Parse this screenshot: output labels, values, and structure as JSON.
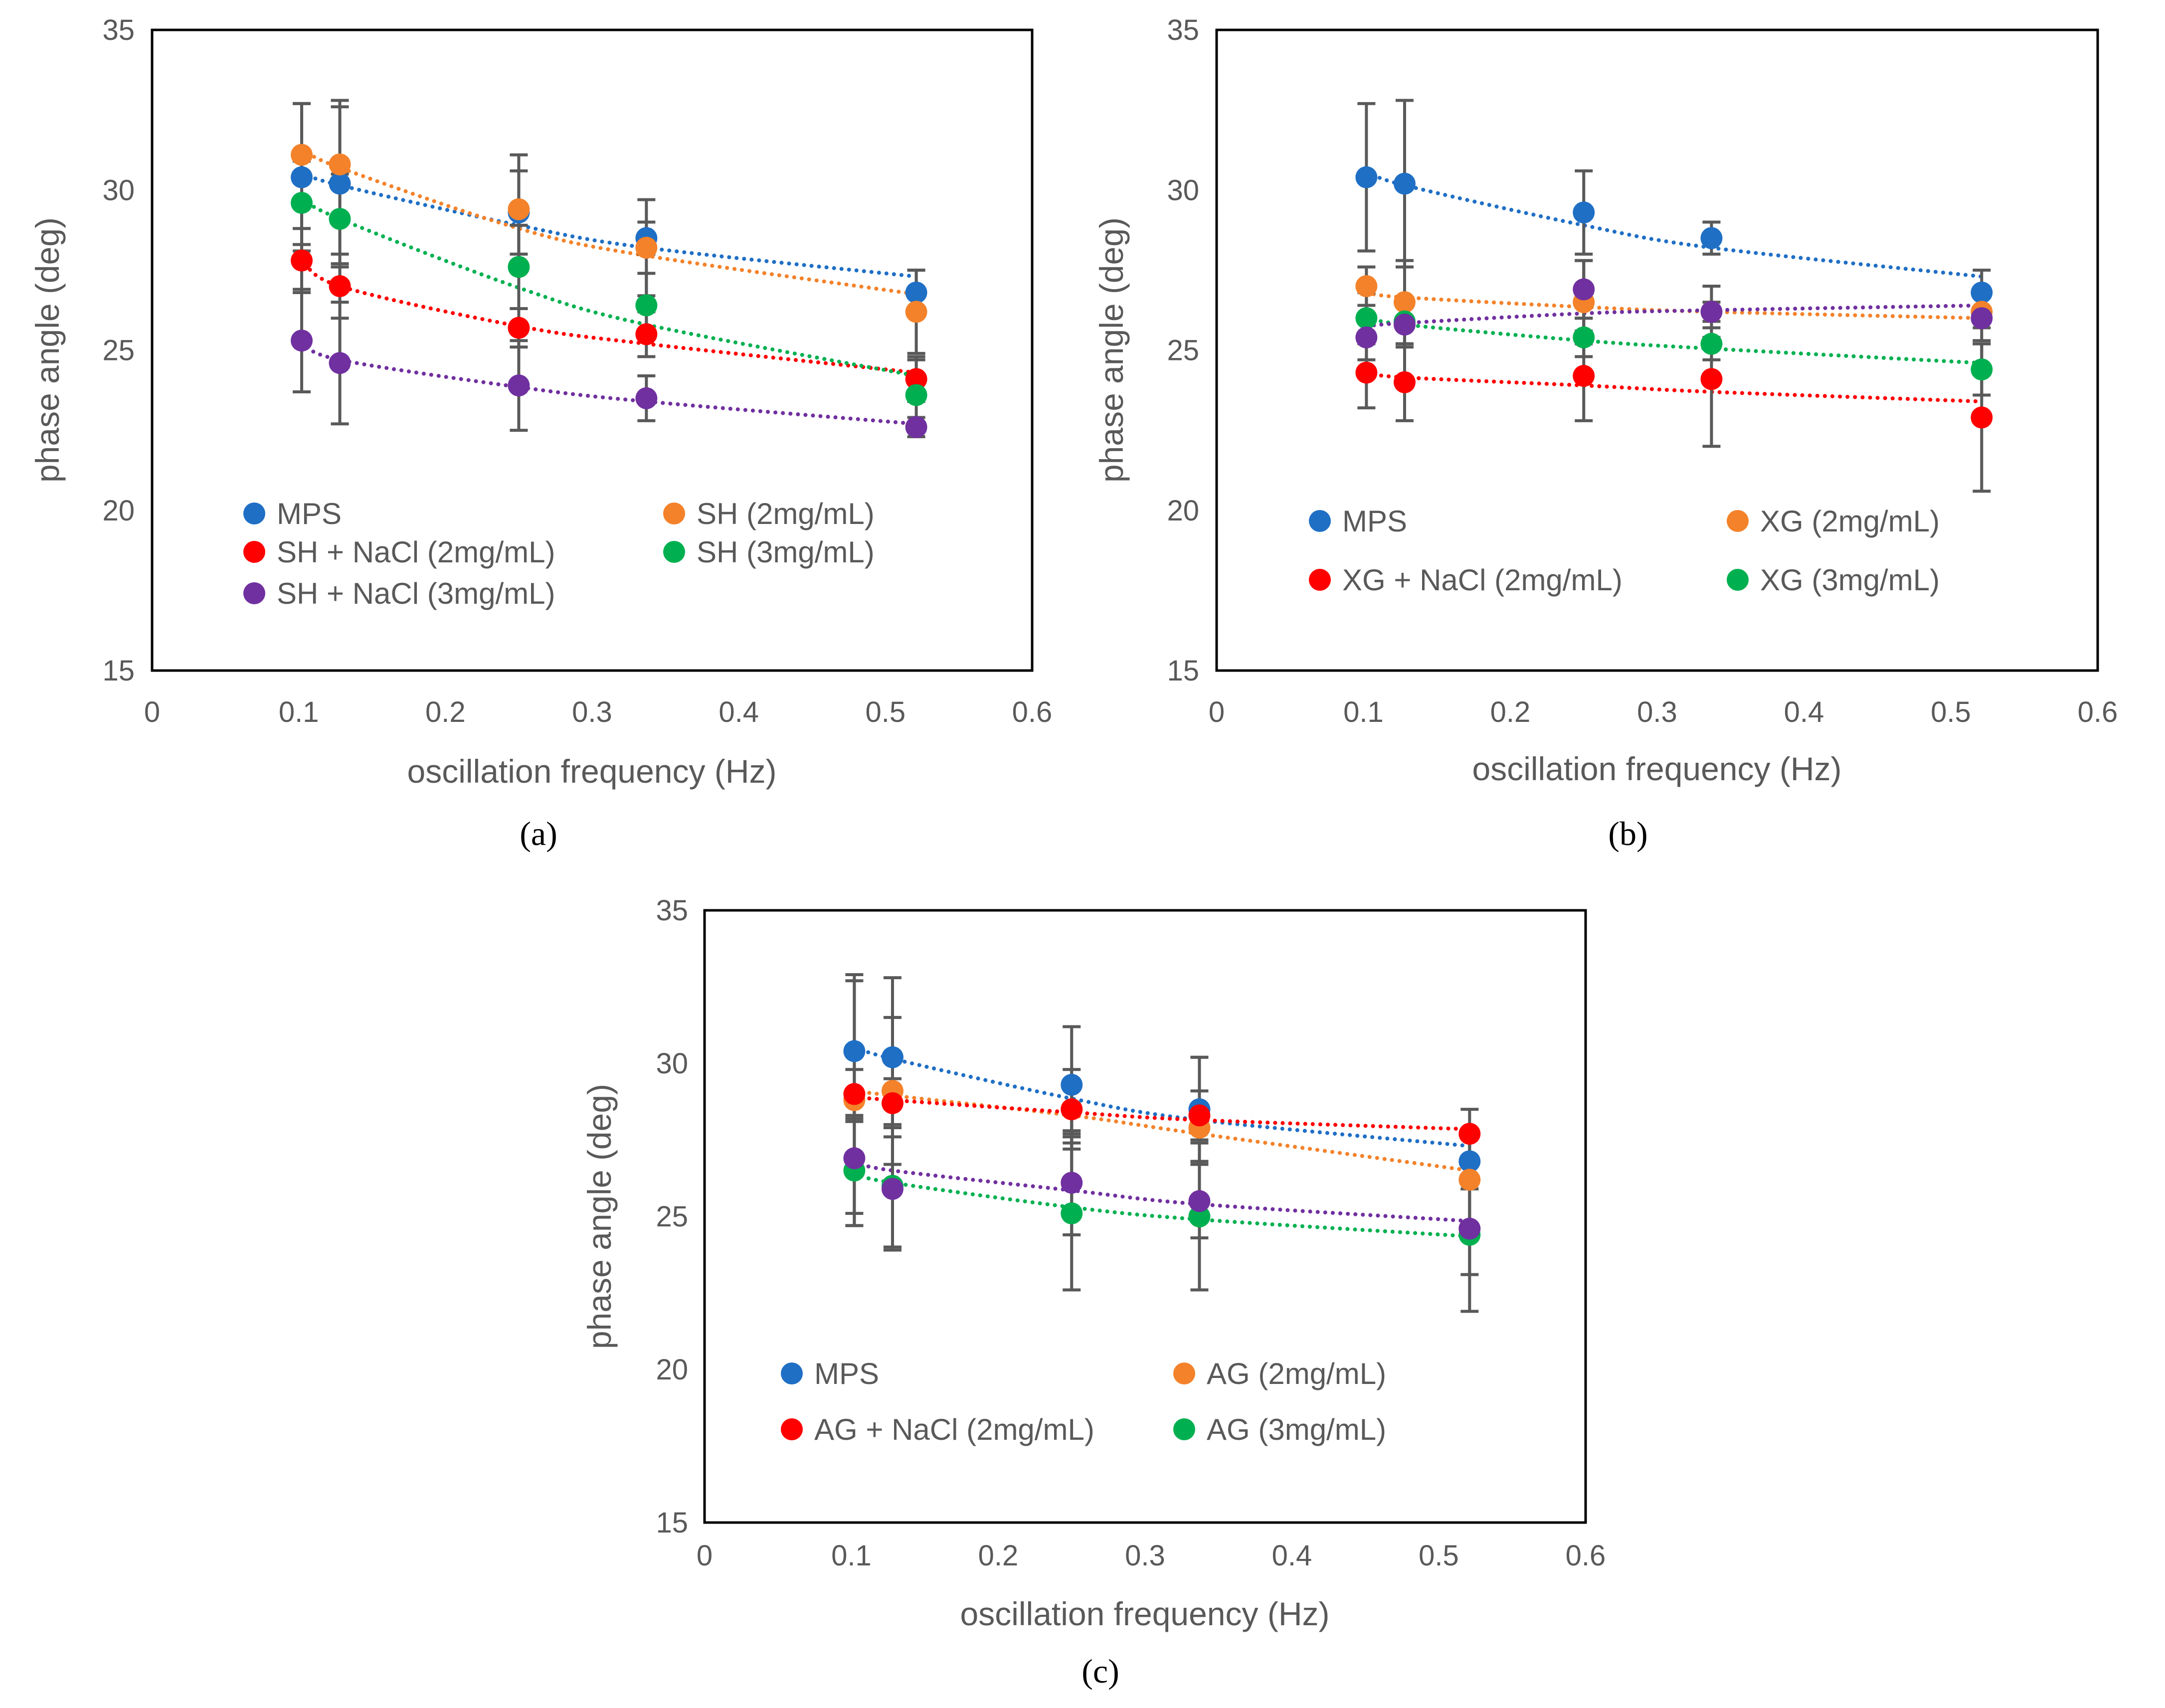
{
  "panel_captions": [
    "(a)",
    "(b)",
    "(c)"
  ],
  "chart_data": [
    {
      "type": "scatter",
      "panel": "(a)",
      "xlabel": "oscillation frequency (Hz)",
      "ylabel": "phase angle (deg)",
      "xlim": [
        0,
        0.6
      ],
      "ylim": [
        15,
        35
      ],
      "xticks": [
        "0",
        "0.1",
        "0.2",
        "0.3",
        "0.4",
        "0.5",
        "0.6"
      ],
      "yticks": [
        "15",
        "20",
        "25",
        "30",
        "35"
      ],
      "grid": false,
      "trendline": "dotted",
      "x": [
        0.102,
        0.128,
        0.25,
        0.337,
        0.521
      ],
      "series": [
        {
          "name": "MPS",
          "color": "#1f6fc5",
          "values": [
            30.4,
            30.2,
            29.3,
            28.5,
            26.8
          ],
          "errors": [
            2.3,
            2.6,
            1.3,
            0.5,
            0.7
          ],
          "trend": [
            30.55,
            30.15,
            28.9,
            28.2,
            27.3
          ]
        },
        {
          "name": "SH (2mg/mL)",
          "color": "#f4822a",
          "values": [
            31.1,
            30.8,
            29.4,
            28.2,
            26.2
          ],
          "errors": [
            1.6,
            1.8,
            1.7,
            1.5,
            1.3
          ],
          "trend": [
            31.3,
            30.7,
            28.8,
            27.95,
            26.75
          ]
        },
        {
          "name": "SH + NaCl (2mg/mL)",
          "color": "#ff0000",
          "values": [
            27.8,
            27.0,
            25.7,
            25.5,
            24.1
          ],
          "errors": [
            1.0,
            1.0,
            0.6,
            0.7,
            0.7
          ],
          "trend": [
            27.9,
            27.0,
            25.75,
            25.2,
            24.3
          ]
        },
        {
          "name": "SH (3mg/mL)",
          "color": "#00b050",
          "values": [
            29.6,
            29.1,
            27.6,
            26.4,
            23.6
          ],
          "errors": [
            1.3,
            1.4,
            1.3,
            1.0,
            1.1
          ],
          "trend": [
            29.75,
            29.1,
            26.95,
            25.8,
            24.2
          ]
        },
        {
          "name": "SH + NaCl (3mg/mL)",
          "color": "#7030a0",
          "values": [
            25.3,
            24.6,
            23.9,
            23.5,
            22.6
          ],
          "errors": [
            1.6,
            1.9,
            1.4,
            0.7,
            0.3
          ],
          "trend": [
            25.25,
            24.7,
            23.85,
            23.4,
            22.7
          ]
        }
      ]
    },
    {
      "type": "scatter",
      "panel": "(b)",
      "xlabel": "oscillation frequency (Hz)",
      "ylabel": "phase angle (deg)",
      "xlim": [
        0,
        0.6
      ],
      "ylim": [
        15,
        35
      ],
      "xticks": [
        "0",
        "0.1",
        "0.2",
        "0.3",
        "0.4",
        "0.5",
        "0.6"
      ],
      "yticks": [
        "15",
        "20",
        "25",
        "30",
        "35"
      ],
      "grid": false,
      "trendline": "dotted",
      "x": [
        0.102,
        0.128,
        0.25,
        0.337,
        0.521
      ],
      "series": [
        {
          "name": "MPS",
          "color": "#1f6fc5",
          "values": [
            30.4,
            30.2,
            29.3,
            28.5,
            26.8
          ],
          "errors": [
            2.3,
            2.6,
            1.3,
            0.5,
            0.7
          ],
          "trend": [
            30.6,
            30.15,
            28.9,
            28.2,
            27.3
          ]
        },
        {
          "name": "XG (2mg/mL)",
          "color": "#f4822a",
          "values": [
            27.0,
            26.5,
            26.5,
            26.2,
            26.2
          ],
          "errors": [
            0.6,
            1.3,
            1.3,
            0.3,
            0.5
          ],
          "trend": [
            26.8,
            26.65,
            26.35,
            26.2,
            26.0
          ]
        },
        {
          "name": "XG + NaCl (2mg/mL)",
          "color": "#ff0000",
          "values": [
            24.3,
            24.0,
            24.2,
            24.1,
            22.9
          ],
          "errors": [
            1.1,
            1.2,
            1.4,
            2.1,
            2.3
          ],
          "trend": [
            24.3,
            24.15,
            23.9,
            23.7,
            23.4
          ]
        },
        {
          "name": "XG (3mg/mL)",
          "color": "#00b050",
          "values": [
            26.0,
            25.9,
            25.4,
            25.2,
            24.4
          ],
          "errors": [
            0.8,
            0.7,
            0.6,
            0.5,
            0.8
          ],
          "trend": [
            26.05,
            25.8,
            25.3,
            25.05,
            24.6
          ]
        },
        {
          "name": "SH + NaCl (3mg/mL)",
          "color": "#7030a0",
          "values": [
            25.4,
            25.8,
            26.9,
            26.2,
            26.0
          ],
          "errors": [
            0.7,
            0.7,
            0.9,
            0.8,
            0.7
          ],
          "trend": [
            25.75,
            25.85,
            26.15,
            26.25,
            26.4
          ]
        }
      ]
    },
    {
      "type": "scatter",
      "panel": "(c)",
      "xlabel": "oscillation frequency (Hz)",
      "ylabel": "phase angle (deg)",
      "xlim": [
        0,
        0.6
      ],
      "ylim": [
        15,
        35
      ],
      "xticks": [
        "0",
        "0.1",
        "0.2",
        "0.3",
        "0.4",
        "0.5",
        "0.6"
      ],
      "yticks": [
        "15",
        "20",
        "25",
        "30",
        "35"
      ],
      "grid": false,
      "trendline": "dotted",
      "x": [
        0.102,
        0.128,
        0.25,
        0.337,
        0.521
      ],
      "series": [
        {
          "name": "MPS",
          "color": "#1f6fc5",
          "values": [
            30.4,
            30.2,
            29.3,
            28.5,
            26.8
          ],
          "errors": [
            2.3,
            2.6,
            1.9,
            1.7,
            0.9
          ],
          "trend": [
            30.55,
            30.15,
            28.85,
            28.15,
            27.3
          ]
        },
        {
          "name": "AG (2mg/mL)",
          "color": "#f4822a",
          "values": [
            28.8,
            29.1,
            28.5,
            27.9,
            26.2
          ],
          "errors": [
            4.1,
            2.4,
            1.3,
            2.3,
            1.5
          ],
          "trend": [
            29.1,
            28.95,
            28.3,
            27.7,
            26.5
          ]
        },
        {
          "name": "AG + NaCl (2mg/mL)",
          "color": "#ff0000",
          "values": [
            29.0,
            28.7,
            28.5,
            28.3,
            27.7
          ],
          "errors": [
            0.8,
            0.8,
            0.8,
            0.8,
            0.8
          ],
          "trend": [
            28.9,
            28.8,
            28.4,
            28.15,
            27.85
          ]
        },
        {
          "name": "AG (3mg/mL)",
          "color": "#00b050",
          "values": [
            26.5,
            26.0,
            25.1,
            25.0,
            24.4
          ],
          "errors": [
            1.8,
            2.0,
            2.5,
            2.4,
            2.5
          ],
          "trend": [
            26.4,
            26.1,
            25.3,
            24.9,
            24.35
          ]
        },
        {
          "name": "SH + NaCl (3mg/mL)",
          "color": "#7030a0",
          "values": [
            26.9,
            25.9,
            26.1,
            25.5,
            24.6
          ],
          "errors": [
            1.8,
            2.0,
            1.7,
            1.2,
            1.5
          ],
          "trend": [
            26.8,
            26.5,
            25.85,
            25.4,
            24.85
          ]
        }
      ]
    }
  ],
  "legends": [
    {
      "entries": [
        {
          "label": "MPS",
          "color": "#1f6fc5"
        },
        {
          "label": "SH (2mg/mL)",
          "color": "#f4822a"
        },
        {
          "label": "SH + NaCl (2mg/mL)",
          "color": "#ff0000"
        },
        {
          "label": "SH (3mg/mL)",
          "color": "#00b050"
        },
        {
          "label": "SH + NaCl (3mg/mL)",
          "color": "#7030a0"
        }
      ]
    },
    {
      "entries": [
        {
          "label": "MPS",
          "color": "#1f6fc5"
        },
        {
          "label": "XG (2mg/mL)",
          "color": "#f4822a"
        },
        {
          "label": "XG + NaCl (2mg/mL)",
          "color": "#ff0000"
        },
        {
          "label": "XG (3mg/mL)",
          "color": "#00b050"
        }
      ]
    },
    {
      "entries": [
        {
          "label": "MPS",
          "color": "#1f6fc5"
        },
        {
          "label": "AG (2mg/mL)",
          "color": "#f4822a"
        },
        {
          "label": "AG + NaCl (2mg/mL)",
          "color": "#ff0000"
        },
        {
          "label": "AG (3mg/mL)",
          "color": "#00b050"
        }
      ]
    }
  ]
}
